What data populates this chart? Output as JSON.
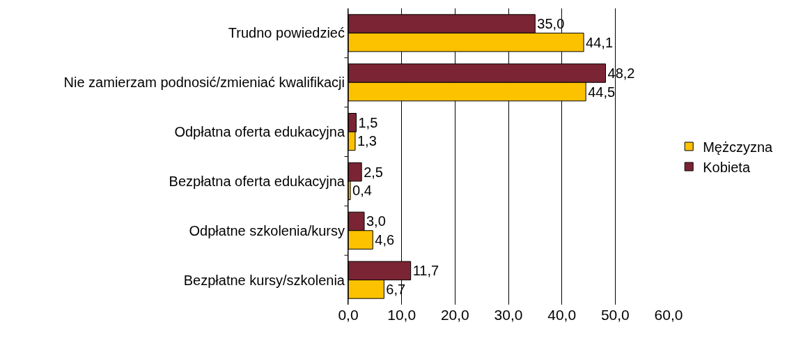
{
  "chart_data": {
    "type": "bar",
    "orientation": "horizontal",
    "categories": [
      "Trudno powiedzieć",
      "Nie zamierzam podnosić/zmieniać kwalifikacji",
      "Odpłatna oferta edukacyjna",
      "Bezpłatna oferta edukacyjna",
      "Odpłatne szkolenia/kursy",
      "Bezpłatne kursy/szkolenia"
    ],
    "series": [
      {
        "name": "Mężczyzna",
        "color": "#fcc200",
        "values": [
          44.1,
          44.5,
          1.3,
          0.4,
          4.6,
          6.7
        ],
        "value_labels": [
          "44,1",
          "44,5",
          "1,3",
          "0,4",
          "4,6",
          "6,7"
        ]
      },
      {
        "name": "Kobieta",
        "color": "#7b2433",
        "values": [
          35.0,
          48.2,
          1.5,
          2.5,
          3.0,
          11.7
        ],
        "value_labels": [
          "35,0",
          "48,2",
          "1,5",
          "2,5",
          "3,0",
          "11,7"
        ]
      }
    ],
    "xlim": [
      0,
      60
    ],
    "xticks": [
      {
        "value": 0,
        "label": "0,0"
      },
      {
        "value": 10,
        "label": "10,0"
      },
      {
        "value": 20,
        "label": "20,0"
      },
      {
        "value": 30,
        "label": "30,0"
      },
      {
        "value": 40,
        "label": "40,0"
      },
      {
        "value": 50,
        "label": "50,0"
      },
      {
        "value": 60,
        "label": "60,0"
      }
    ],
    "grid": "x",
    "legend": "right"
  }
}
